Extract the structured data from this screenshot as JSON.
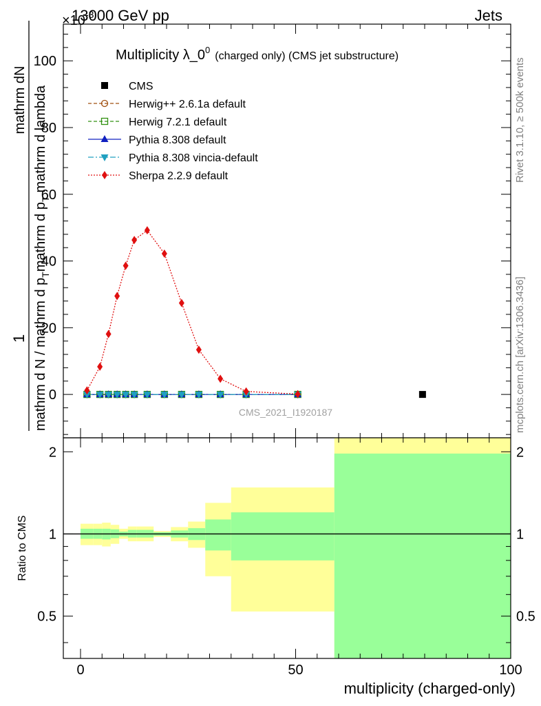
{
  "header": {
    "left": "13000 GeV pp",
    "right": "Jets",
    "exponent_label": "×10",
    "exponent_power": "-3"
  },
  "side_labels": {
    "rivet": "Rivet 3.1.10, ≥ 500k events",
    "mcplots": "mcplots.cern.ch [arXiv:1306.3436]"
  },
  "chart_data": [
    {
      "type": "line",
      "title": "Multiplicity λ_0",
      "title_sup": "0",
      "title_suffix": "(charged only) (CMS jet substructure)",
      "watermark": "CMS_2021_I1920187",
      "ylabel": {
        "numerator": "1",
        "numerator_note": "mathrm dN",
        "denominator": "mathrm d N / mathrm d p",
        "denominator_sub": "T",
        "denominator_tail": "mathrm d p",
        "tail_sub": "T",
        "tail_end": "mathrm d lambda",
        "denominator_tail2": "mathrm d lambda"
      },
      "xlim": [
        -4,
        100
      ],
      "ylim": [
        -13,
        111
      ],
      "y_ticks": [
        0,
        20,
        40,
        60,
        80,
        100
      ],
      "y_scale_note": "values in units of 10^-3",
      "legend": [
        {
          "name": "CMS",
          "style": "data"
        },
        {
          "name": "Herwig++ 2.6.1a default",
          "style": "herwigpp"
        },
        {
          "name": "Herwig 7.2.1 default",
          "style": "herwig7"
        },
        {
          "name": "Pythia 8.308 default",
          "style": "pythia"
        },
        {
          "name": "Pythia 8.308 vincia-default",
          "style": "vincia"
        },
        {
          "name": "Sherpa 2.2.9 default",
          "style": "sherpa"
        }
      ],
      "data_points": [
        {
          "x": 79.5,
          "y": 0.0
        }
      ],
      "series": [
        {
          "name": "Herwig++ 2.6.1a default",
          "x": [
            1.5,
            4.5,
            6.5,
            8.5,
            10.5,
            12.5,
            15.5,
            19.5,
            23.5,
            27.5,
            32.5,
            38.5,
            50.5
          ],
          "y": [
            0,
            0,
            0,
            0,
            0,
            0,
            0,
            0,
            0,
            0,
            0,
            0,
            0
          ]
        },
        {
          "name": "Herwig 7.2.1 default",
          "x": [
            1.5,
            4.5,
            6.5,
            8.5,
            10.5,
            12.5,
            15.5,
            19.5,
            23.5,
            27.5,
            32.5,
            38.5,
            50.5
          ],
          "y": [
            0,
            0,
            0,
            0,
            0,
            0,
            0,
            0,
            0,
            0,
            0,
            0,
            0
          ]
        },
        {
          "name": "Pythia 8.308 default",
          "x": [
            1.5,
            4.5,
            6.5,
            8.5,
            10.5,
            12.5,
            15.5,
            19.5,
            23.5,
            27.5,
            32.5,
            38.5,
            50.5
          ],
          "y": [
            0,
            0,
            0,
            0,
            0,
            0,
            0,
            0,
            0,
            0,
            0,
            0,
            0
          ]
        },
        {
          "name": "Pythia 8.308 vincia-default",
          "x": [
            1.5,
            4.5,
            6.5,
            8.5,
            10.5,
            12.5,
            15.5,
            19.5,
            23.5,
            27.5,
            32.5,
            38.5,
            50.5
          ],
          "y": [
            0,
            0,
            0,
            0,
            0,
            0,
            0,
            0,
            0,
            0,
            0,
            0,
            0
          ]
        },
        {
          "name": "Sherpa 2.2.9 default",
          "x": [
            1.5,
            4.5,
            6.5,
            8.5,
            10.5,
            12.5,
            15.5,
            19.5,
            23.5,
            27.5,
            32.5,
            38.5,
            50.5
          ],
          "y": [
            1.2,
            8.3,
            18.1,
            29.5,
            38.6,
            46.3,
            49.2,
            42.2,
            27.4,
            13.4,
            4.7,
            0.9,
            0.1
          ]
        }
      ]
    },
    {
      "type": "area",
      "ylabel": "Ratio to CMS",
      "xlabel": "multiplicity (charged-only)",
      "xlim": [
        -4,
        100
      ],
      "ylim": [
        0.35,
        2.25
      ],
      "y_ticks": [
        0.5,
        1,
        2
      ],
      "y_tick_labels": [
        "0.5",
        "1",
        "2"
      ],
      "x_ticks": [
        0,
        50,
        100
      ],
      "x_tick_labels": [
        "0",
        "50",
        "100"
      ],
      "reference_line": 1,
      "bands": [
        {
          "x0": 0,
          "x1": 3,
          "y_lo": 0.91,
          "y_hi": 1.09,
          "g_lo": 0.96,
          "g_hi": 1.045
        },
        {
          "x0": 3,
          "x1": 5,
          "y_lo": 0.91,
          "y_hi": 1.09,
          "g_lo": 0.96,
          "g_hi": 1.045
        },
        {
          "x0": 5,
          "x1": 7,
          "y_lo": 0.9,
          "y_hi": 1.1,
          "g_lo": 0.955,
          "g_hi": 1.045
        },
        {
          "x0": 7,
          "x1": 9,
          "y_lo": 0.92,
          "y_hi": 1.08,
          "g_lo": 0.965,
          "g_hi": 1.04
        },
        {
          "x0": 9,
          "x1": 11,
          "y_lo": 0.96,
          "y_hi": 1.045,
          "g_lo": 0.98,
          "g_hi": 1.02
        },
        {
          "x0": 11,
          "x1": 13,
          "y_lo": 0.94,
          "y_hi": 1.065,
          "g_lo": 0.97,
          "g_hi": 1.035
        },
        {
          "x0": 13,
          "x1": 17,
          "y_lo": 0.94,
          "y_hi": 1.065,
          "g_lo": 0.97,
          "g_hi": 1.035
        },
        {
          "x0": 17,
          "x1": 21,
          "y_lo": 0.975,
          "y_hi": 1.025,
          "g_lo": 0.985,
          "g_hi": 1.015
        },
        {
          "x0": 21,
          "x1": 25,
          "y_lo": 0.94,
          "y_hi": 1.06,
          "g_lo": 0.97,
          "g_hi": 1.03
        },
        {
          "x0": 25,
          "x1": 29,
          "y_lo": 0.89,
          "y_hi": 1.11,
          "g_lo": 0.95,
          "g_hi": 1.05
        },
        {
          "x0": 29,
          "x1": 35,
          "y_lo": 0.7,
          "y_hi": 1.3,
          "g_lo": 0.87,
          "g_hi": 1.13
        },
        {
          "x0": 35,
          "x1": 59,
          "y_lo": 0.52,
          "y_hi": 1.48,
          "g_lo": 0.8,
          "g_hi": 1.2
        },
        {
          "x0": 59,
          "x1": 100,
          "y_lo": 0.35,
          "y_hi": 2.25,
          "g_lo": 0.35,
          "g_hi": 1.97
        }
      ]
    }
  ]
}
